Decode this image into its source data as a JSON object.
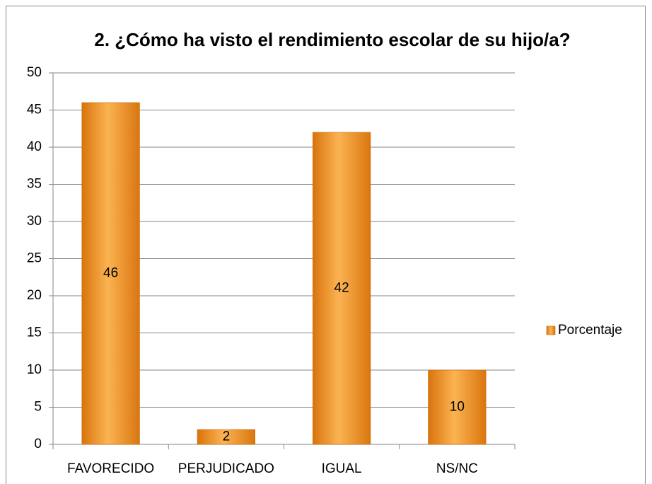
{
  "chart_data": {
    "type": "bar",
    "title": "2. ¿Cómo ha visto el rendimiento escolar de su hijo/a?",
    "categories": [
      "FAVORECIDO",
      "PERJUDICADO",
      "IGUAL",
      "NS/NC"
    ],
    "series": [
      {
        "name": "Porcentaje",
        "color": "#f7981d",
        "values": [
          46,
          2,
          42,
          10
        ]
      }
    ],
    "ylim": [
      0,
      50
    ],
    "yticks": [
      0,
      5,
      10,
      15,
      20,
      25,
      30,
      35,
      40,
      45,
      50
    ],
    "grid": true,
    "legend": "right",
    "data_labels": true
  }
}
